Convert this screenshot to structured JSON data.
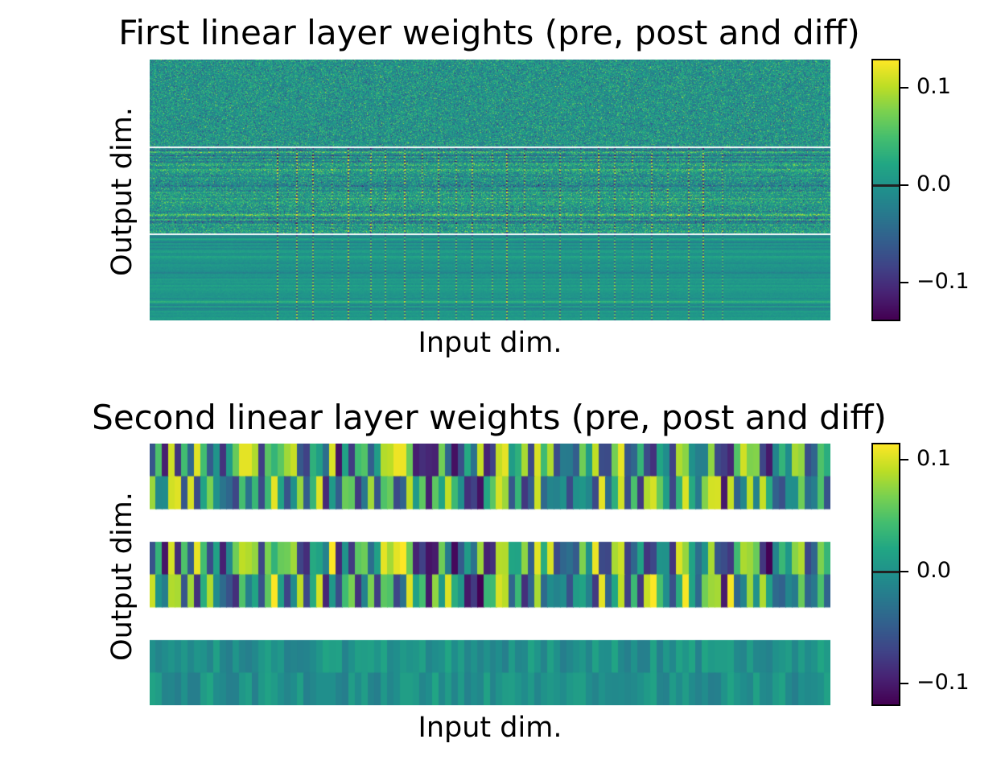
{
  "colormap": "viridis",
  "chart_data": [
    {
      "type": "heatmap",
      "title": "First linear layer weights (pre, post and diff)",
      "xlabel": "Input dim.",
      "ylabel": "Output dim.",
      "panels": [
        "pre",
        "post",
        "diff"
      ],
      "separators": "white",
      "colorbar": {
        "min": -0.14,
        "max": 0.13,
        "ticks": [
          0.1,
          0.0,
          -0.1
        ],
        "tick_labels": [
          "0.1",
          "0.0",
          "−0.1"
        ]
      },
      "pattern": {
        "seed": 7,
        "cols": 424,
        "rows_per_panel": 54,
        "feature_cols": 26,
        "feature_start": 0.19,
        "feature_end": 0.84
      }
    },
    {
      "type": "heatmap",
      "title": "Second linear layer weights (pre, post and diff)",
      "xlabel": "Input dim.",
      "ylabel": "Output dim.",
      "panels": [
        "pre",
        "post",
        "diff"
      ],
      "rows_per_panel": 2,
      "cols": 106,
      "colorbar": {
        "min": -0.12,
        "max": 0.115,
        "ticks": [
          0.1,
          0.0,
          -0.1
        ],
        "tick_labels": [
          "0.1",
          "0.0",
          "−0.1"
        ]
      },
      "pattern": {
        "seed": 13
      }
    }
  ]
}
